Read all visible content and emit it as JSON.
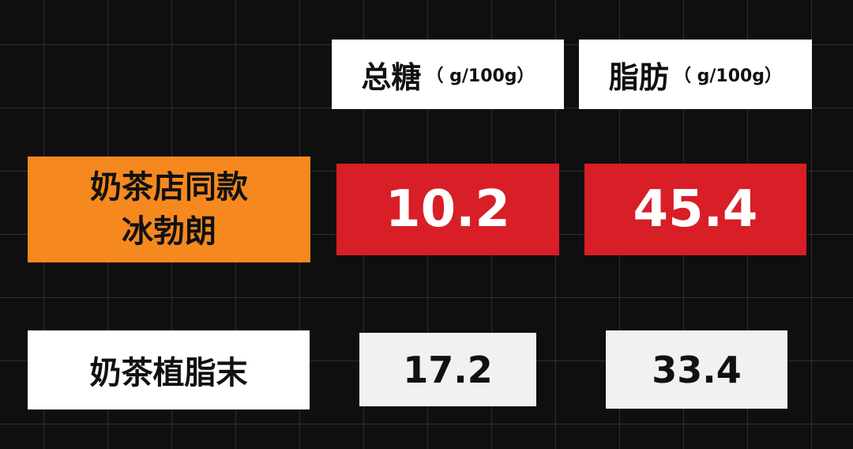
{
  "chart_data": {
    "type": "table",
    "columns": [
      {
        "name": "总糖",
        "unit": "（ g/100g）"
      },
      {
        "name": "脂肪",
        "unit": "（ g/100g）"
      }
    ],
    "rows": [
      {
        "label_lines": [
          "奶茶店同款",
          "冰勃朗"
        ],
        "values": [
          "10.2",
          "45.4"
        ],
        "highlight": true
      },
      {
        "label_lines": [
          "奶茶植脂末"
        ],
        "values": [
          "17.2",
          "33.4"
        ],
        "highlight": false
      }
    ],
    "colors": {
      "background": "#0f0f10",
      "highlight_label": "#f5891f",
      "highlight_value": "#d81e27",
      "normal": "#ffffff"
    }
  }
}
